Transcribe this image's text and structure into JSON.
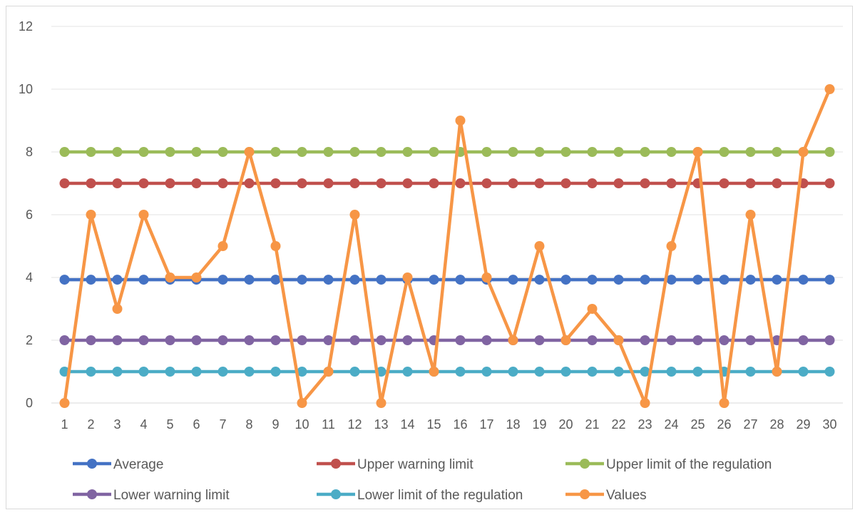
{
  "chart_data": {
    "type": "line",
    "title": "",
    "xlabel": "",
    "ylabel": "",
    "x": [
      1,
      2,
      3,
      4,
      5,
      6,
      7,
      8,
      9,
      10,
      11,
      12,
      13,
      14,
      15,
      16,
      17,
      18,
      19,
      20,
      21,
      22,
      23,
      24,
      25,
      26,
      27,
      28,
      29,
      30
    ],
    "ylim": [
      0,
      12
    ],
    "yticks": [
      0,
      2,
      4,
      6,
      8,
      10,
      12
    ],
    "grid": "horizontal",
    "legend_position": "bottom",
    "series": [
      {
        "name": "Average",
        "color": "#4472C4",
        "values": [
          3.93,
          3.93,
          3.93,
          3.93,
          3.93,
          3.93,
          3.93,
          3.93,
          3.93,
          3.93,
          3.93,
          3.93,
          3.93,
          3.93,
          3.93,
          3.93,
          3.93,
          3.93,
          3.93,
          3.93,
          3.93,
          3.93,
          3.93,
          3.93,
          3.93,
          3.93,
          3.93,
          3.93,
          3.93,
          3.93
        ]
      },
      {
        "name": "Upper warning limit",
        "color": "#C0504D",
        "values": [
          7,
          7,
          7,
          7,
          7,
          7,
          7,
          7,
          7,
          7,
          7,
          7,
          7,
          7,
          7,
          7,
          7,
          7,
          7,
          7,
          7,
          7,
          7,
          7,
          7,
          7,
          7,
          7,
          7,
          7
        ]
      },
      {
        "name": "Upper limit of the regulation",
        "color": "#9BBB59",
        "values": [
          8,
          8,
          8,
          8,
          8,
          8,
          8,
          8,
          8,
          8,
          8,
          8,
          8,
          8,
          8,
          8,
          8,
          8,
          8,
          8,
          8,
          8,
          8,
          8,
          8,
          8,
          8,
          8,
          8,
          8
        ]
      },
      {
        "name": "Lower warning limit",
        "color": "#8064A2",
        "values": [
          2,
          2,
          2,
          2,
          2,
          2,
          2,
          2,
          2,
          2,
          2,
          2,
          2,
          2,
          2,
          2,
          2,
          2,
          2,
          2,
          2,
          2,
          2,
          2,
          2,
          2,
          2,
          2,
          2,
          2
        ]
      },
      {
        "name": "Lower limit of the regulation",
        "color": "#4BACC6",
        "values": [
          1,
          1,
          1,
          1,
          1,
          1,
          1,
          1,
          1,
          1,
          1,
          1,
          1,
          1,
          1,
          1,
          1,
          1,
          1,
          1,
          1,
          1,
          1,
          1,
          1,
          1,
          1,
          1,
          1,
          1
        ]
      },
      {
        "name": "Values",
        "color": "#F79646",
        "values": [
          0,
          6,
          3,
          6,
          4,
          4,
          5,
          8,
          5,
          0,
          1,
          6,
          0,
          4,
          1,
          9,
          4,
          2,
          5,
          2,
          3,
          2,
          0,
          5,
          8,
          0,
          6,
          1,
          8,
          10
        ]
      }
    ]
  }
}
